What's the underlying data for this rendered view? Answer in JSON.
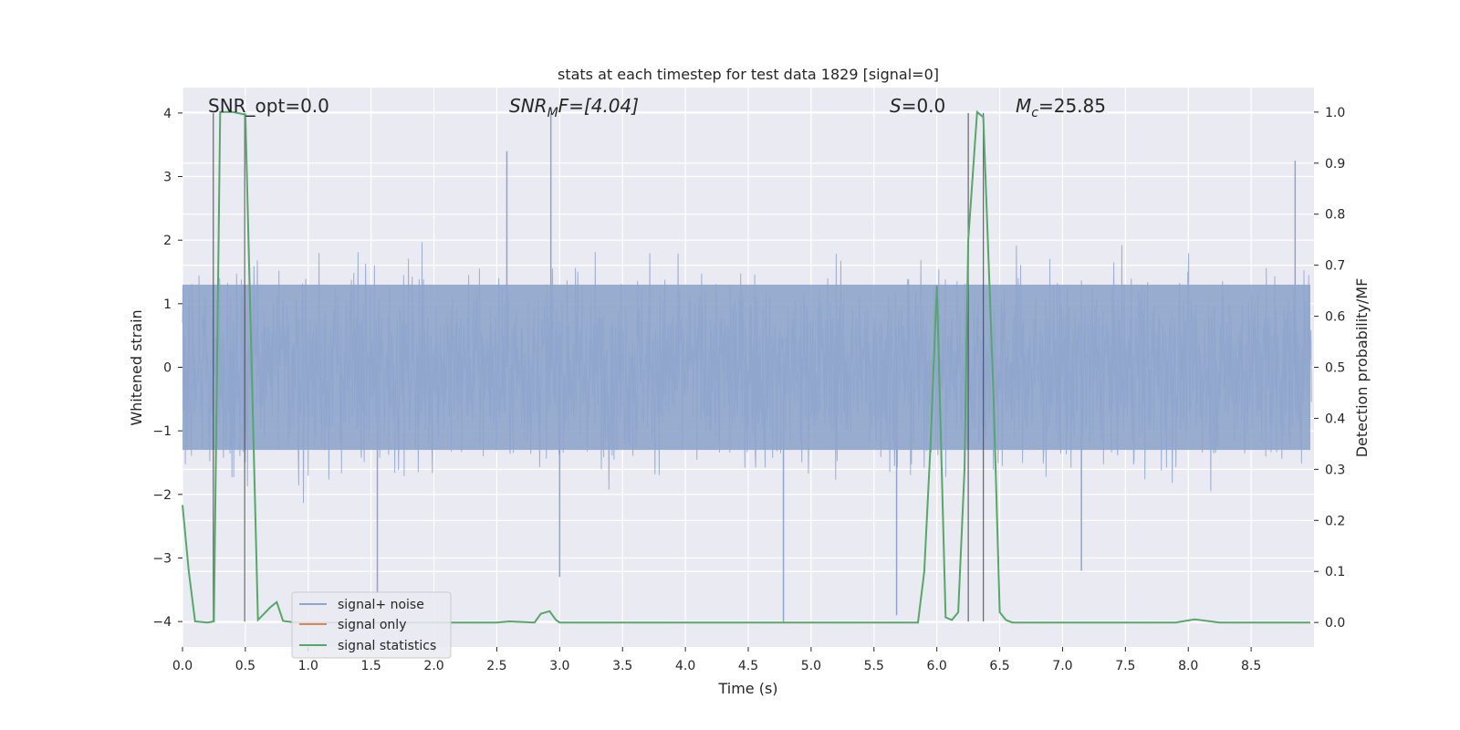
{
  "chart_data": {
    "type": "line",
    "title": "stats at each timestep for test data 1829 [signal=0]",
    "xlabel": "Time (s)",
    "ylabel": "Whitened strain",
    "y2label": "Detection probability/MF",
    "xlim": [
      0,
      9.0
    ],
    "ylim": [
      -4.4,
      4.4
    ],
    "y2lim": [
      -0.048,
      1.048
    ],
    "xticks": [
      0.0,
      0.5,
      1.0,
      1.5,
      2.0,
      2.5,
      3.0,
      3.5,
      4.0,
      4.5,
      5.0,
      5.5,
      6.0,
      6.5,
      7.0,
      7.5,
      8.0,
      8.5
    ],
    "xtick_labels": [
      "0.0",
      "0.5",
      "1.0",
      "1.5",
      "2.0",
      "2.5",
      "3.0",
      "3.5",
      "4.0",
      "4.5",
      "5.0",
      "5.5",
      "6.0",
      "6.5",
      "7.0",
      "7.5",
      "8.0",
      "8.5"
    ],
    "yticks": [
      4,
      3,
      2,
      1,
      0,
      -1,
      -2,
      -3,
      -4
    ],
    "ytick_labels": [
      "4",
      "3",
      "2",
      "1",
      "0",
      "−1",
      "−2",
      "−3",
      "−4"
    ],
    "y2ticks": [
      1.0,
      0.9,
      0.8,
      0.7,
      0.6,
      0.5,
      0.4,
      0.3,
      0.2,
      0.1,
      0.0
    ],
    "y2tick_labels": [
      "1.0",
      "0.9",
      "0.8",
      "0.7",
      "0.6",
      "0.5",
      "0.4",
      "0.3",
      "0.2",
      "0.1",
      "0.0"
    ],
    "annotations": {
      "snr_opt": "SNR_opt=0.0",
      "snr_mf_prefix": "SNR",
      "snr_mf_sub": "M",
      "snr_mf_rest": "F=[4.04]",
      "s_prefix": "S",
      "s_rest": "=0.0",
      "mc_prefix": "M",
      "mc_sub": "c",
      "mc_rest": "=25.85"
    },
    "vertical_markers": [
      0.245,
      0.495,
      6.25,
      6.37
    ],
    "noise_envelope": {
      "series_name": "signal+ noise",
      "color": "#8fa5cc",
      "dense_band": [
        -1.3,
        1.3
      ],
      "notable_spikes": [
        {
          "x": 2.93,
          "y": 4.0
        },
        {
          "x": 2.58,
          "y": 3.4
        },
        {
          "x": 8.85,
          "y": 3.25
        },
        {
          "x": 4.78,
          "y": -4.0
        },
        {
          "x": 5.68,
          "y": -3.9
        },
        {
          "x": 1.55,
          "y": -3.55
        },
        {
          "x": 7.15,
          "y": -3.2
        },
        {
          "x": 3.0,
          "y": -3.3
        }
      ]
    },
    "series": [
      {
        "name": "signal+ noise",
        "color": "#8fa5cc"
      },
      {
        "name": "signal only",
        "color": "#dd8452",
        "x": [],
        "y": []
      },
      {
        "name": "signal statistics",
        "color": "#55a868",
        "axis": "right",
        "x": [
          0.0,
          0.05,
          0.1,
          0.2,
          0.25,
          0.3,
          0.4,
          0.5,
          0.6,
          0.7,
          0.75,
          0.8,
          0.9,
          1.0,
          2.5,
          2.6,
          2.8,
          2.85,
          2.92,
          2.97,
          3.0,
          3.5,
          5.0,
          5.85,
          5.9,
          5.95,
          6.0,
          6.07,
          6.12,
          6.17,
          6.22,
          6.25,
          6.32,
          6.37,
          6.45,
          6.5,
          6.55,
          6.6,
          7.0,
          7.9,
          8.05,
          8.25,
          8.5,
          8.97
        ],
        "y": [
          0.23,
          0.1,
          0.002,
          0.0,
          0.002,
          1.0,
          1.0,
          0.995,
          0.005,
          0.03,
          0.04,
          0.003,
          0.0,
          0.0,
          0.0,
          0.002,
          0.0,
          0.017,
          0.022,
          0.005,
          0.0,
          0.0,
          0.0,
          0.0,
          0.1,
          0.35,
          0.66,
          0.01,
          0.005,
          0.02,
          0.3,
          0.75,
          1.0,
          0.99,
          0.45,
          0.02,
          0.005,
          0.0,
          0.0,
          0.0,
          0.006,
          0.0,
          0.0,
          0.0
        ]
      }
    ],
    "legend_position": "lower-left",
    "grid": true
  }
}
